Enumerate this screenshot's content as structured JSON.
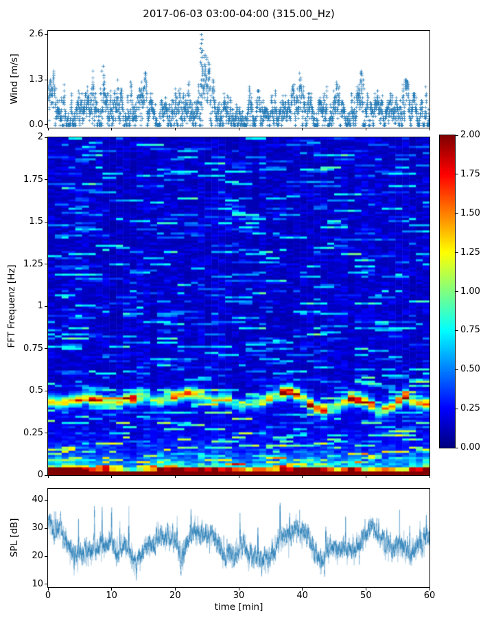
{
  "title": "2017-06-03 03:00-04:00 (315.00_Hz)",
  "colors": {
    "series_blue": "#1f77b4",
    "axis": "#000000",
    "background": "#ffffff",
    "colormap": "jet"
  },
  "chart_data": [
    {
      "id": "wind",
      "type": "scatter",
      "marker": "+",
      "ylabel": "Wind [m/s]",
      "xlim": [
        0,
        60
      ],
      "ylim": [
        -0.08,
        2.7
      ],
      "ytick_labels": [
        "0.0",
        "1.3",
        "2.6"
      ],
      "ytick_values": [
        0,
        1.3,
        2.6
      ],
      "xtick_values": [
        0,
        10,
        20,
        30,
        40,
        50,
        60
      ],
      "quantum_ms": 0.065,
      "envelope": {
        "t_min": [
          0,
          1,
          2,
          3,
          4,
          5,
          6,
          7,
          8,
          9,
          10,
          11,
          12,
          13,
          14,
          15,
          16,
          17,
          18,
          19,
          20,
          21,
          22,
          23,
          24,
          25,
          26,
          27,
          28,
          29,
          30,
          31,
          32,
          33,
          34,
          35,
          36,
          37,
          38,
          39,
          40,
          41,
          42,
          43,
          44,
          45,
          46,
          47,
          48,
          49,
          50,
          51,
          52,
          53,
          54,
          55,
          56,
          57,
          58,
          59,
          60
        ],
        "vmax_ms": [
          1.3,
          1.25,
          1.3,
          0.95,
          1.05,
          1.1,
          1.0,
          1.3,
          1.95,
          1.6,
          1.05,
          1.0,
          0.9,
          1.35,
          0.85,
          1.3,
          1.3,
          0.8,
          0.75,
          1.0,
          1.3,
          1.3,
          1.45,
          1.35,
          2.6,
          1.7,
          1.3,
          0.95,
          1.3,
          1.0,
          0.85,
          0.78,
          1.0,
          1.25,
          0.9,
          0.72,
          0.8,
          0.9,
          1.1,
          1.45,
          1.35,
          1.1,
          0.95,
          1.15,
          1.3,
          1.3,
          1.0,
          0.9,
          1.1,
          1.6,
          1.25,
          1.0,
          0.95,
          0.9,
          0.85,
          1.0,
          1.15,
          1.2,
          1.0,
          1.25,
          1.3
        ]
      },
      "gust_peaks": [
        [
          8.6,
          1.95
        ],
        [
          24.1,
          2.6
        ],
        [
          49.5,
          1.6
        ]
      ]
    },
    {
      "id": "fft_spectrogram",
      "type": "heatmap",
      "ylabel": "FFT Frequenz [Hz]",
      "xlim": [
        0,
        60
      ],
      "ylim": [
        0,
        2
      ],
      "ytick_labels": [
        "0",
        "0.25",
        "0.5",
        "0.75",
        "1",
        "1.25",
        "1.5",
        "1.75",
        "2"
      ],
      "ytick_values": [
        0,
        0.25,
        0.5,
        0.75,
        1,
        1.25,
        1.5,
        1.75,
        2
      ],
      "xtick_values": [
        0,
        10,
        20,
        30,
        40,
        50,
        60
      ],
      "vmin": 0,
      "vmax": 2,
      "colorbar_tick_labels": [
        "0.00",
        "0.25",
        "0.50",
        "0.75",
        "1.00",
        "1.25",
        "1.50",
        "1.75",
        "2.00"
      ],
      "colorbar_tick_values": [
        0,
        0.25,
        0.5,
        0.75,
        1,
        1.25,
        1.5,
        1.75,
        2
      ],
      "background_level_range": [
        0.05,
        0.4
      ],
      "saturated_red_below_hz": 0.03,
      "ridge_band": {
        "t_min": [
          0,
          3,
          6,
          8,
          10,
          13,
          15,
          17,
          20,
          22,
          24,
          26,
          28,
          30,
          32,
          34,
          36,
          38,
          40,
          42,
          44,
          46,
          48,
          50,
          52,
          54,
          56,
          58,
          60
        ],
        "f_hz": [
          0.43,
          0.44,
          0.46,
          0.45,
          0.43,
          0.46,
          0.47,
          0.44,
          0.47,
          0.49,
          0.47,
          0.44,
          0.46,
          0.41,
          0.42,
          0.44,
          0.48,
          0.5,
          0.46,
          0.4,
          0.39,
          0.42,
          0.46,
          0.44,
          0.38,
          0.4,
          0.47,
          0.43,
          0.42
        ],
        "amp": [
          0.9,
          0.8,
          1.3,
          1.0,
          0.8,
          1.5,
          0.9,
          0.7,
          1.0,
          1.1,
          0.8,
          0.7,
          0.9,
          0.5,
          0.5,
          0.7,
          1.1,
          1.4,
          0.9,
          1.5,
          1.0,
          0.8,
          1.3,
          1.0,
          0.8,
          0.7,
          1.2,
          0.9,
          1.0
        ]
      },
      "low_freq_bursts": {
        "t_min": [
          0,
          2,
          4,
          6,
          8,
          10,
          12,
          14,
          16,
          18,
          20,
          22,
          24,
          26,
          28,
          30,
          32,
          34,
          36,
          38,
          40,
          42,
          44,
          46,
          48,
          50,
          52,
          54,
          56,
          58,
          60
        ],
        "amp": [
          0.9,
          0.95,
          0.9,
          0.85,
          0.7,
          0.6,
          0.25,
          0.2,
          0.55,
          0.85,
          0.8,
          0.7,
          0.8,
          0.85,
          0.75,
          0.5,
          0.45,
          0.7,
          0.5,
          0.8,
          0.95,
          0.9,
          0.8,
          0.35,
          0.9,
          0.3,
          0.6,
          0.5,
          0.35,
          0.8,
          0.9
        ]
      }
    },
    {
      "id": "spl",
      "type": "line",
      "ylabel": "SPL [dB]",
      "xlabel": "time [min]",
      "xlim": [
        0,
        60
      ],
      "ylim": [
        9,
        44
      ],
      "ytick_labels": [
        "10",
        "20",
        "30",
        "40"
      ],
      "ytick_values": [
        10,
        20,
        30,
        40
      ],
      "xtick_labels": [
        "0",
        "10",
        "20",
        "30",
        "40",
        "50",
        "60"
      ],
      "xtick_values": [
        0,
        10,
        20,
        30,
        40,
        50,
        60
      ],
      "noise_sigma_db": 1.5,
      "mean": {
        "t_min": [
          0,
          1,
          2,
          3,
          4,
          5,
          6,
          7,
          8,
          9,
          10,
          11,
          12,
          13,
          14,
          15,
          16,
          17,
          18,
          19,
          20,
          21,
          22,
          23,
          24,
          25,
          26,
          27,
          28,
          29,
          30,
          31,
          32,
          33,
          34,
          35,
          36,
          37,
          38,
          39,
          40,
          41,
          42,
          43,
          44,
          45,
          46,
          47,
          48,
          49,
          50,
          51,
          52,
          53,
          54,
          55,
          56,
          57,
          58,
          59,
          60
        ],
        "db": [
          33,
          28.5,
          29.5,
          23,
          20,
          20.5,
          21,
          23,
          23,
          23.5,
          24,
          21.5,
          24,
          21,
          17.5,
          22,
          24,
          25.5,
          26.5,
          28,
          25.5,
          19,
          26,
          29,
          29.5,
          26,
          26.5,
          24,
          20,
          20.5,
          22,
          22.5,
          19.5,
          18.5,
          18,
          19.5,
          24,
          26,
          27.5,
          29.5,
          29,
          26.5,
          22,
          18.5,
          23,
          24,
          23,
          21.5,
          22,
          25,
          28,
          30.5,
          27,
          24,
          23,
          22.5,
          23.5,
          20,
          23,
          24.5,
          26.5
        ]
      },
      "spikes": [
        [
          4.8,
          35
        ],
        [
          7.3,
          41.5
        ],
        [
          8.5,
          37
        ],
        [
          10.0,
          39.5
        ],
        [
          11.3,
          33
        ],
        [
          12.7,
          40
        ],
        [
          20.3,
          36
        ],
        [
          22.5,
          38.5
        ],
        [
          30.2,
          34
        ],
        [
          33.0,
          33.5
        ],
        [
          36.5,
          38.5
        ],
        [
          38.0,
          36
        ],
        [
          43.7,
          33
        ],
        [
          46.8,
          33
        ],
        [
          53.3,
          31
        ],
        [
          55.3,
          33.5
        ],
        [
          56.9,
          32
        ],
        [
          58.5,
          33.5
        ],
        [
          59.5,
          34.5
        ]
      ],
      "dips": [
        [
          4.1,
          13.5
        ],
        [
          13.9,
          13
        ],
        [
          21.2,
          15
        ],
        [
          27.9,
          16
        ],
        [
          33.6,
          13
        ],
        [
          43.5,
          14.5
        ],
        [
          57.2,
          16
        ]
      ]
    }
  ]
}
